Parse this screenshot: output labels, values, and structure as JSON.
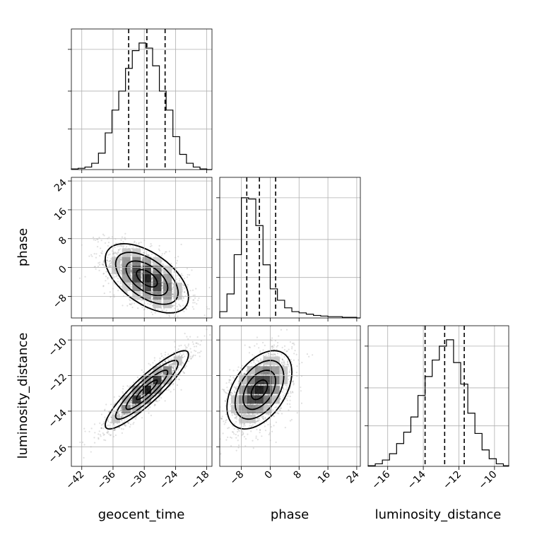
{
  "chart_data": {
    "type": "corner",
    "parameters": [
      {
        "key": "geocent_time",
        "label": "geocent_time",
        "ticks": [
          -42,
          -36,
          -30,
          -24,
          -18
        ],
        "range": [
          -44,
          -17
        ],
        "quantiles": [
          -33.0,
          -29.5,
          -26.0
        ],
        "hist_edges": [
          -44,
          -42.7,
          -41.4,
          -40.1,
          -38.8,
          -37.5,
          -36.2,
          -34.9,
          -33.6,
          -32.3,
          -31.0,
          -29.7,
          -28.4,
          -27.1,
          -25.8,
          -24.5,
          -23.2,
          -21.9,
          -20.6,
          -19.3,
          -18.0,
          -17.0
        ],
        "hist_counts": [
          0.005,
          0.01,
          0.02,
          0.05,
          0.13,
          0.29,
          0.47,
          0.62,
          0.8,
          0.94,
          1.0,
          0.96,
          0.82,
          0.62,
          0.47,
          0.26,
          0.12,
          0.05,
          0.02,
          0.005,
          0.0
        ]
      },
      {
        "key": "phase",
        "label": "phase",
        "ticks": [
          -8,
          0,
          8,
          16,
          24
        ],
        "range": [
          -14,
          25
        ],
        "quantiles": [
          -6.5,
          -3.0,
          1.5
        ],
        "hist_edges": [
          -14,
          -12,
          -10,
          -8,
          -6,
          -4,
          -2,
          0,
          2,
          4,
          6,
          8,
          10,
          12,
          14,
          16,
          18,
          20,
          22,
          24,
          25
        ],
        "hist_counts": [
          0.05,
          0.19,
          0.5,
          0.95,
          0.94,
          0.73,
          0.42,
          0.23,
          0.14,
          0.08,
          0.05,
          0.04,
          0.03,
          0.02,
          0.015,
          0.01,
          0.01,
          0.005,
          0.005,
          0.0
        ]
      },
      {
        "key": "luminosity_distance",
        "label": "luminosity_distance",
        "ticks": [
          -16,
          -14,
          -12,
          -10
        ],
        "range": [
          -17.1,
          -9.2
        ],
        "quantiles": [
          -13.9,
          -12.8,
          -11.7
        ],
        "hist_edges": [
          -17.1,
          -16.7,
          -16.3,
          -15.9,
          -15.5,
          -15.1,
          -14.7,
          -14.3,
          -13.9,
          -13.5,
          -13.1,
          -12.7,
          -12.3,
          -11.9,
          -11.5,
          -11.1,
          -10.7,
          -10.3,
          -9.9,
          -9.5,
          -9.2
        ],
        "hist_counts": [
          0.005,
          0.02,
          0.05,
          0.1,
          0.18,
          0.27,
          0.39,
          0.56,
          0.71,
          0.84,
          0.95,
          1.0,
          0.82,
          0.65,
          0.42,
          0.26,
          0.13,
          0.06,
          0.02,
          0.005
        ]
      }
    ],
    "pairs": [
      {
        "x": "geocent_time",
        "y": "phase",
        "correlation": -0.55,
        "center": [
          -29.5,
          -3.0
        ],
        "sigma": [
          4.0,
          4.8
        ]
      },
      {
        "x": "geocent_time",
        "y": "luminosity_distance",
        "correlation": 0.9,
        "center": [
          -29.5,
          -12.8
        ],
        "sigma": [
          4.0,
          1.1
        ]
      },
      {
        "x": "phase",
        "y": "luminosity_distance",
        "correlation": 0.45,
        "center": [
          -3.0,
          -12.8
        ],
        "sigma": [
          4.5,
          1.1
        ]
      }
    ],
    "ylabels": {
      "row1": "phase",
      "row2": "luminosity_distance"
    },
    "xlabels": [
      "geocent_time",
      "phase",
      "luminosity_distance"
    ],
    "grid": true
  }
}
